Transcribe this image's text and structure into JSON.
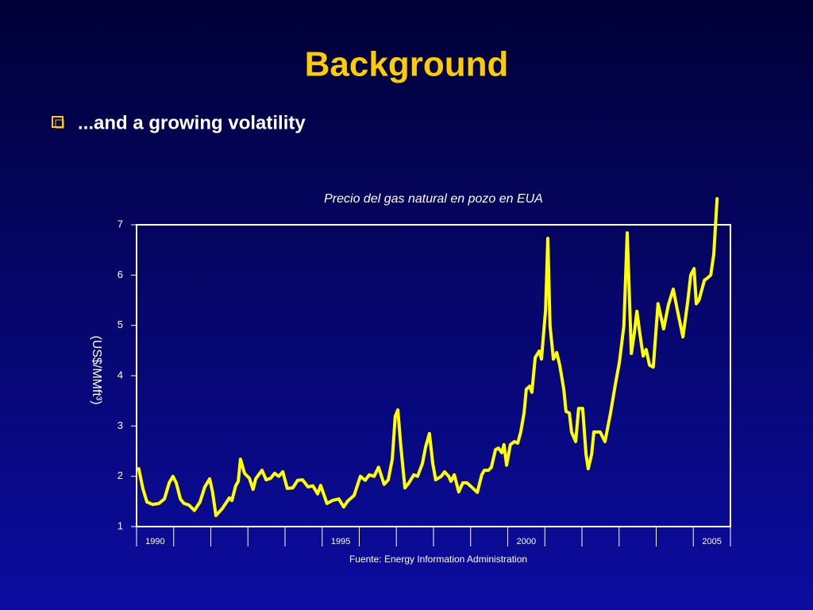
{
  "title": "Background",
  "bullet": "...and a growing volatility",
  "chart_data": {
    "type": "line",
    "title": "Precio del gas natural en pozo en EUA",
    "ylabel": "(US$/MMft³)",
    "source": "Fuente: Energy Information Administration",
    "color": "#ffff00",
    "ylim": [
      1,
      7
    ],
    "yticks": [
      1,
      2,
      3,
      4,
      5,
      6,
      7
    ],
    "xlim": [
      1990,
      2006
    ],
    "xticks": [
      1990,
      1991,
      1992,
      1993,
      1994,
      1995,
      1996,
      1997,
      1998,
      1999,
      2000,
      2001,
      2002,
      2003,
      2004,
      2005,
      2006
    ],
    "year_labels": [
      1990,
      1995,
      2000,
      2005
    ],
    "x": [
      1990.06,
      1990.17,
      1990.28,
      1990.43,
      1990.6,
      1990.75,
      1990.88,
      1990.98,
      1991.07,
      1991.18,
      1991.28,
      1991.41,
      1991.56,
      1991.71,
      1991.84,
      1991.97,
      1992.05,
      1992.14,
      1992.31,
      1992.5,
      1992.57,
      1992.67,
      1992.74,
      1992.8,
      1992.91,
      1993.04,
      1993.14,
      1993.21,
      1993.38,
      1993.49,
      1993.61,
      1993.72,
      1993.83,
      1993.94,
      1994.06,
      1994.21,
      1994.34,
      1994.47,
      1994.62,
      1994.75,
      1994.88,
      1994.96,
      1995.13,
      1995.28,
      1995.45,
      1995.58,
      1995.69,
      1995.86,
      1996.03,
      1996.16,
      1996.27,
      1996.4,
      1996.52,
      1996.67,
      1996.78,
      1996.89,
      1996.97,
      1997.04,
      1997.12,
      1997.23,
      1997.34,
      1997.47,
      1997.57,
      1997.7,
      1997.79,
      1997.89,
      1997.98,
      1998.06,
      1998.21,
      1998.3,
      1998.41,
      1998.47,
      1998.56,
      1998.68,
      1998.79,
      1998.9,
      1999.05,
      1999.18,
      1999.3,
      1999.37,
      1999.48,
      1999.56,
      1999.67,
      1999.75,
      1999.84,
      1999.9,
      1999.97,
      2000.07,
      2000.18,
      2000.27,
      2000.35,
      2000.44,
      2000.5,
      2000.59,
      2000.65,
      2000.74,
      2000.85,
      2000.91,
      2001.02,
      2001.08,
      2001.14,
      2001.23,
      2001.32,
      2001.4,
      2001.51,
      2001.57,
      2001.66,
      2001.72,
      2001.83,
      2001.91,
      2002.02,
      2002.11,
      2002.17,
      2002.26,
      2002.32,
      2002.49,
      2002.62,
      2002.77,
      2002.9,
      2003.01,
      2003.13,
      2003.22,
      2003.33,
      2003.41,
      2003.48,
      2003.56,
      2003.65,
      2003.73,
      2003.82,
      2003.92,
      2004.05,
      2004.2,
      2004.33,
      2004.46,
      2004.57,
      2004.72,
      2004.85,
      2004.93,
      2005.02,
      2005.08,
      2005.15,
      2005.3,
      2005.38,
      2005.47,
      2005.55,
      2005.64
    ],
    "values": [
      2.15,
      1.76,
      1.49,
      1.44,
      1.46,
      1.55,
      1.87,
      2.0,
      1.87,
      1.55,
      1.46,
      1.43,
      1.32,
      1.49,
      1.79,
      1.95,
      1.68,
      1.22,
      1.36,
      1.57,
      1.52,
      1.81,
      1.9,
      2.34,
      2.06,
      1.96,
      1.74,
      1.95,
      2.12,
      1.93,
      1.96,
      2.06,
      2.0,
      2.09,
      1.76,
      1.77,
      1.92,
      1.93,
      1.79,
      1.81,
      1.65,
      1.82,
      1.46,
      1.52,
      1.55,
      1.39,
      1.51,
      1.62,
      2.0,
      1.92,
      2.03,
      2.0,
      2.18,
      1.84,
      1.93,
      2.34,
      3.19,
      3.32,
      2.59,
      1.77,
      1.87,
      2.03,
      2.0,
      2.25,
      2.59,
      2.85,
      2.25,
      1.93,
      2.0,
      2.09,
      2.0,
      1.9,
      2.03,
      1.69,
      1.87,
      1.87,
      1.77,
      1.68,
      2.03,
      2.12,
      2.12,
      2.18,
      2.53,
      2.56,
      2.47,
      2.63,
      2.22,
      2.63,
      2.69,
      2.66,
      2.88,
      3.26,
      3.73,
      3.79,
      3.67,
      4.36,
      4.49,
      4.33,
      5.31,
      6.73,
      4.99,
      4.33,
      4.46,
      4.21,
      3.73,
      3.29,
      3.26,
      2.88,
      2.69,
      3.35,
      3.35,
      2.44,
      2.15,
      2.44,
      2.88,
      2.88,
      2.69,
      3.26,
      3.83,
      4.27,
      4.99,
      6.84,
      4.44,
      4.84,
      5.28,
      4.84,
      4.39,
      4.52,
      4.21,
      4.17,
      5.43,
      4.93,
      5.41,
      5.72,
      5.31,
      4.77,
      5.47,
      6.0,
      6.13,
      5.43,
      5.5,
      5.9,
      5.94,
      6.0,
      6.41,
      7.52
    ]
  }
}
